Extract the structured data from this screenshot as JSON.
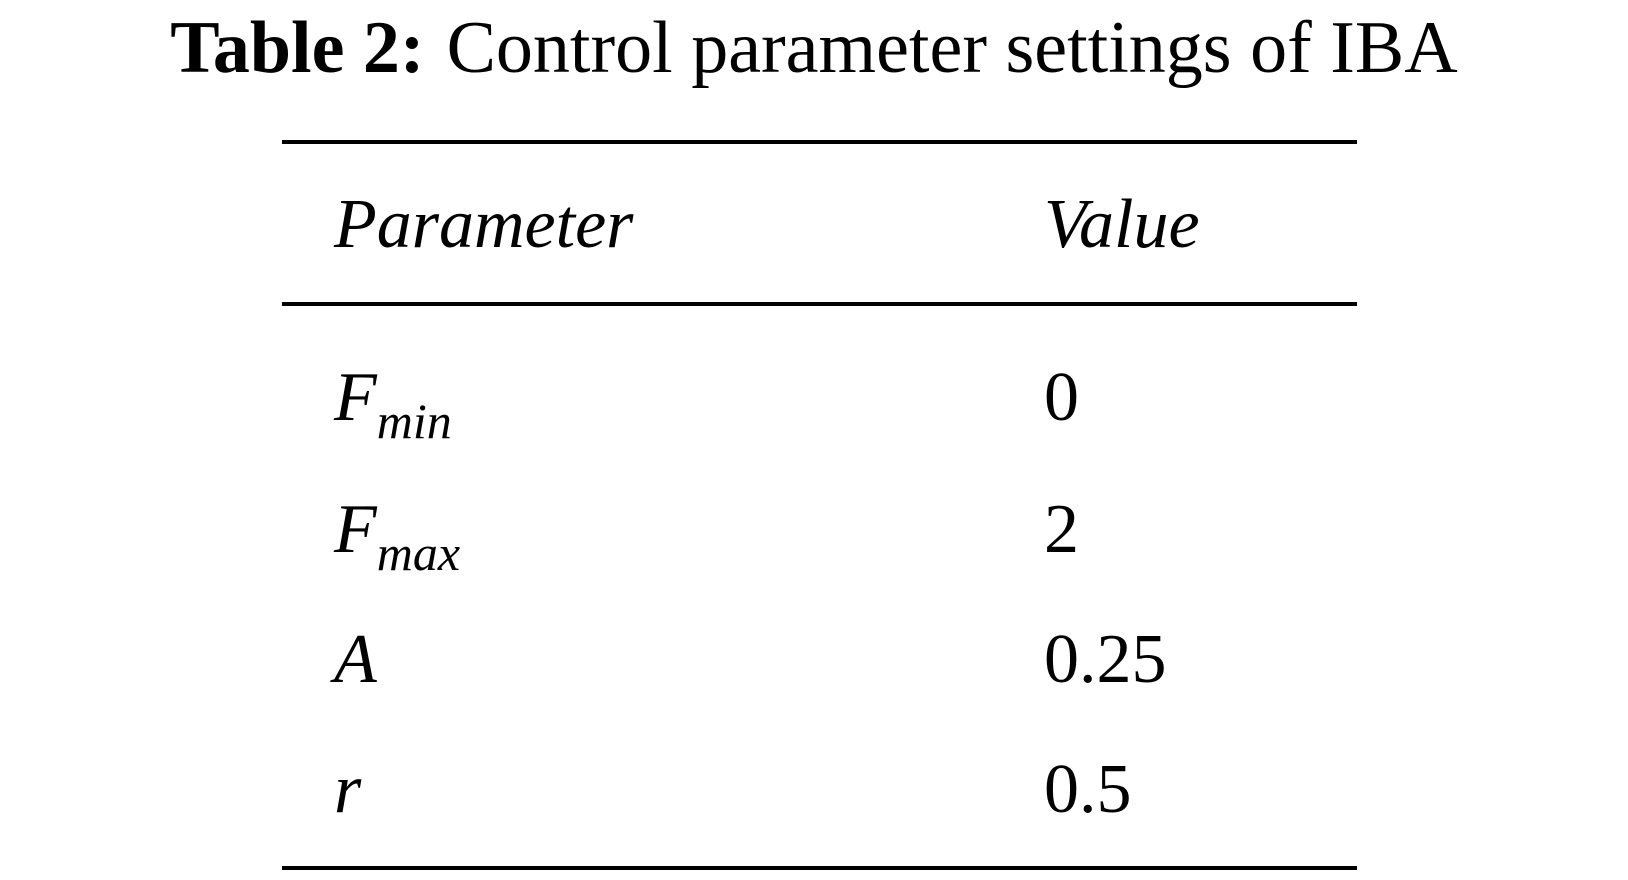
{
  "caption": {
    "label": "Table 2:",
    "text": "Control parameter settings of IBA"
  },
  "table": {
    "header": [
      "Parameter",
      "Value"
    ],
    "rows": [
      [
        {
          "symbol": "F",
          "subscript": "min"
        },
        0
      ],
      [
        {
          "symbol": "F",
          "subscript": "max"
        },
        2
      ],
      [
        {
          "symbol": "A"
        },
        0.25
      ],
      [
        {
          "symbol": "r"
        },
        0.5
      ]
    ]
  }
}
